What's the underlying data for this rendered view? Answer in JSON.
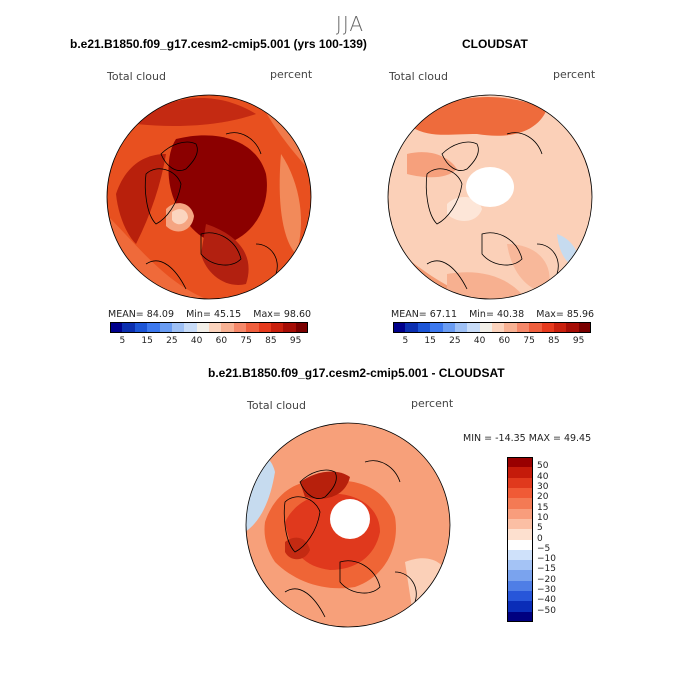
{
  "figure": {
    "season": "JJA",
    "panels": [
      {
        "title": "b.e21.B1850.f09_g17.cesm2-cmip5.001 (yrs 100-139)",
        "variable_label": "Total cloud",
        "units_label": "percent",
        "stats": {
          "mean_label": "MEAN=",
          "mean": "84.09",
          "min_label": "Min=",
          "min": "45.15",
          "max_label": "Max=",
          "max": "98.60"
        }
      },
      {
        "title": "CLOUDSAT",
        "variable_label": "Total cloud",
        "units_label": "percent",
        "stats": {
          "mean_label": "MEAN=",
          "mean": "67.11",
          "min_label": "Min=",
          "min": "40.38",
          "max_label": "Max=",
          "max": "85.96"
        }
      },
      {
        "title": "b.e21.B1850.f09_g17.cesm2-cmip5.001 - CLOUDSAT",
        "variable_label": "Total cloud",
        "units_label": "percent",
        "stats_text": "MIN = -14.35  MAX =  49.45"
      }
    ],
    "abs_colorbar": {
      "ticks": [
        "5",
        "15",
        "25",
        "40",
        "60",
        "75",
        "85",
        "95"
      ],
      "colors": [
        "#00008b",
        "#0b2fb0",
        "#1c55d6",
        "#3c78ee",
        "#6a9cf2",
        "#9ec0f5",
        "#c8dcf8",
        "#f2efe8",
        "#fbd3bd",
        "#f8b193",
        "#f5886a",
        "#ef5f3e",
        "#e63a1d",
        "#c9200d",
        "#a60d05",
        "#7a0000"
      ]
    },
    "diff_colorbar": {
      "ticks": [
        "50",
        "40",
        "30",
        "20",
        "15",
        "10",
        "5",
        "0",
        "−5",
        "−10",
        "−15",
        "−20",
        "−30",
        "−40",
        "−50"
      ],
      "colors": [
        "#990000",
        "#c51b0a",
        "#e0391d",
        "#f05a36",
        "#f47a54",
        "#f89d7c",
        "#fbbfa4",
        "#fde0cf",
        "#ffffff",
        "#cfe1fa",
        "#a4c3f5",
        "#7aa3ee",
        "#4f7ee6",
        "#2756d9",
        "#0a2db8",
        "#000080"
      ]
    },
    "palette": {
      "deep_red": "#8b0000",
      "red": "#d7301f",
      "orange": "#f46d43",
      "salmon": "#fc8d59",
      "light_salmon": "#fdbb84",
      "pale": "#fde0cf",
      "light_blue": "#c6dbef",
      "land_outline": "#000000"
    }
  }
}
